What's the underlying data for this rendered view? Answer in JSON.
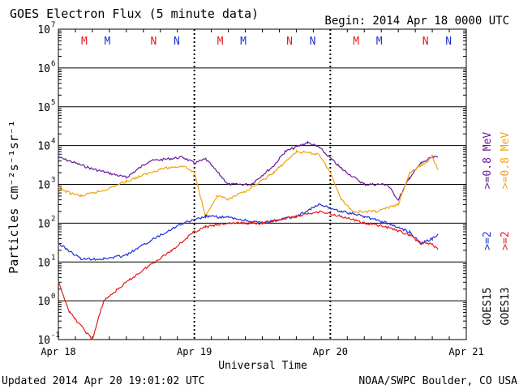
{
  "header": {
    "title": "GOES Electron Flux (5 minute data)",
    "begin": "Begin: 2014 Apr 18 0000 UTC"
  },
  "footer": {
    "updated": "Updated 2014 Apr 20 19:01:02 UTC",
    "source": "NOAA/SWPC Boulder, CO USA"
  },
  "axes": {
    "ylabel": "Particles cm⁻²s⁻¹sr⁻¹",
    "xlabel": "Universal Time",
    "x_ticks": [
      "Apr 18",
      "Apr 19",
      "Apr 20",
      "Apr 21"
    ],
    "y_ticks": [
      {
        "mant": "10",
        "exp": "-1"
      },
      {
        "mant": "10",
        "exp": "0"
      },
      {
        "mant": "10",
        "exp": "1"
      },
      {
        "mant": "10",
        "exp": "2"
      },
      {
        "mant": "10",
        "exp": "3"
      },
      {
        "mant": "10",
        "exp": "4"
      },
      {
        "mant": "10",
        "exp": "5"
      },
      {
        "mant": "10",
        "exp": "6"
      },
      {
        "mant": "10",
        "exp": "7"
      }
    ]
  },
  "legend": {
    "goes15": "GOES15",
    "goes13": "GOES13",
    "items": [
      {
        "label": ">=2",
        "color": "#1f2fd8"
      },
      {
        "label": ">=2",
        "color": "#e41a1a"
      },
      {
        "label": ">=0.8 MeV",
        "color": "#6a1a9a"
      },
      {
        "label": ">=0.8 MeV",
        "color": "#f0a30a"
      }
    ]
  },
  "markers": [
    {
      "label": "M",
      "color": "#e41a1a"
    },
    {
      "label": "M",
      "color": "#1f2fd8"
    },
    {
      "label": "N",
      "color": "#e41a1a"
    },
    {
      "label": "N",
      "color": "#1f2fd8"
    },
    {
      "label": "M",
      "color": "#e41a1a"
    },
    {
      "label": "M",
      "color": "#1f2fd8"
    },
    {
      "label": "N",
      "color": "#e41a1a"
    },
    {
      "label": "N",
      "color": "#1f2fd8"
    },
    {
      "label": "M",
      "color": "#e41a1a"
    },
    {
      "label": "M",
      "color": "#1f2fd8"
    },
    {
      "label": "N",
      "color": "#e41a1a"
    },
    {
      "label": "N",
      "color": "#1f2fd8"
    }
  ],
  "chart_data": {
    "type": "line",
    "title": "GOES Electron Flux (5 minute data)",
    "xlabel": "Universal Time",
    "ylabel": "Particles cm⁻²s⁻¹sr⁻¹",
    "y_scale": "log",
    "ylim": [
      0.1,
      10000000
    ],
    "xlim": [
      "2014-04-18",
      "2014-04-21"
    ],
    "x_tick_labels": [
      "Apr 18",
      "Apr 19",
      "Apr 20",
      "Apr 21"
    ],
    "threshold_dashed": 1000,
    "grid": true,
    "series": [
      {
        "name": "GOES15 >=0.8 MeV",
        "color": "#6a1a9a",
        "x": [
          "2014-04-18 00:00",
          "2014-04-18 06:00",
          "2014-04-18 12:00",
          "2014-04-18 16:00",
          "2014-04-18 22:00",
          "2014-04-19 00:00",
          "2014-04-19 02:00",
          "2014-04-19 06:00",
          "2014-04-19 10:00",
          "2014-04-19 14:00",
          "2014-04-19 16:00",
          "2014-04-19 20:00",
          "2014-04-19 22:00",
          "2014-04-20 02:00",
          "2014-04-20 06:00",
          "2014-04-20 10:00",
          "2014-04-20 12:00",
          "2014-04-20 14:00",
          "2014-04-20 16:00",
          "2014-04-20 18:00",
          "2014-04-20 19:00"
        ],
        "y": [
          5000,
          2500,
          1500,
          4000,
          5000,
          3500,
          4500,
          1000,
          1000,
          3000,
          7000,
          12000,
          9000,
          2500,
          1000,
          1000,
          400,
          1500,
          3500,
          5000,
          5000
        ]
      },
      {
        "name": "GOES13 >=0.8 MeV",
        "color": "#f0a30a",
        "x": [
          "2014-04-18 00:00",
          "2014-04-18 02:00",
          "2014-04-18 04:00",
          "2014-04-18 08:00",
          "2014-04-18 12:00",
          "2014-04-18 18:00",
          "2014-04-18 22:00",
          "2014-04-19 00:00",
          "2014-04-19 02:00",
          "2014-04-19 04:00",
          "2014-04-19 06:00",
          "2014-04-19 10:00",
          "2014-04-19 14:00",
          "2014-04-19 18:00",
          "2014-04-19 22:00",
          "2014-04-20 00:00",
          "2014-04-20 02:00",
          "2014-04-20 04:00",
          "2014-04-20 08:00",
          "2014-04-20 12:00",
          "2014-04-20 14:00",
          "2014-04-20 16:00",
          "2014-04-20 18:00",
          "2014-04-20 19:00"
        ],
        "y": [
          800,
          600,
          500,
          700,
          1200,
          2500,
          3000,
          2000,
          150,
          500,
          400,
          800,
          2000,
          7000,
          6000,
          2000,
          400,
          200,
          200,
          300,
          2000,
          3000,
          5000,
          2500
        ]
      },
      {
        "name": "GOES15 >=2 MeV",
        "color": "#1f2fd8",
        "x": [
          "2014-04-18 00:00",
          "2014-04-18 04:00",
          "2014-04-18 08:00",
          "2014-04-18 12:00",
          "2014-04-18 18:00",
          "2014-04-18 22:00",
          "2014-04-19 00:00",
          "2014-04-19 02:00",
          "2014-04-19 06:00",
          "2014-04-19 12:00",
          "2014-04-19 18:00",
          "2014-04-19 22:00",
          "2014-04-20 02:00",
          "2014-04-20 06:00",
          "2014-04-20 10:00",
          "2014-04-20 14:00",
          "2014-04-20 16:00",
          "2014-04-20 18:00",
          "2014-04-20 19:00"
        ],
        "y": [
          30,
          12,
          12,
          15,
          50,
          100,
          120,
          150,
          140,
          100,
          150,
          300,
          200,
          150,
          100,
          60,
          30,
          40,
          50
        ]
      },
      {
        "name": "GOES13 >=2 MeV",
        "color": "#e41a1a",
        "x": [
          "2014-04-18 00:00",
          "2014-04-18 02:00",
          "2014-04-18 06:00",
          "2014-04-18 08:00",
          "2014-04-18 12:00",
          "2014-04-18 16:00",
          "2014-04-18 20:00",
          "2014-04-19 00:00",
          "2014-04-19 02:00",
          "2014-04-19 06:00",
          "2014-04-19 12:00",
          "2014-04-19 18:00",
          "2014-04-19 22:00",
          "2014-04-20 02:00",
          "2014-04-20 06:00",
          "2014-04-20 10:00",
          "2014-04-20 14:00",
          "2014-04-20 16:00",
          "2014-04-20 18:00",
          "2014-04-20 19:00"
        ],
        "y": [
          3,
          0.5,
          0.1,
          1,
          3,
          8,
          20,
          60,
          80,
          100,
          100,
          150,
          200,
          150,
          100,
          80,
          50,
          30,
          30,
          20
        ]
      }
    ]
  }
}
